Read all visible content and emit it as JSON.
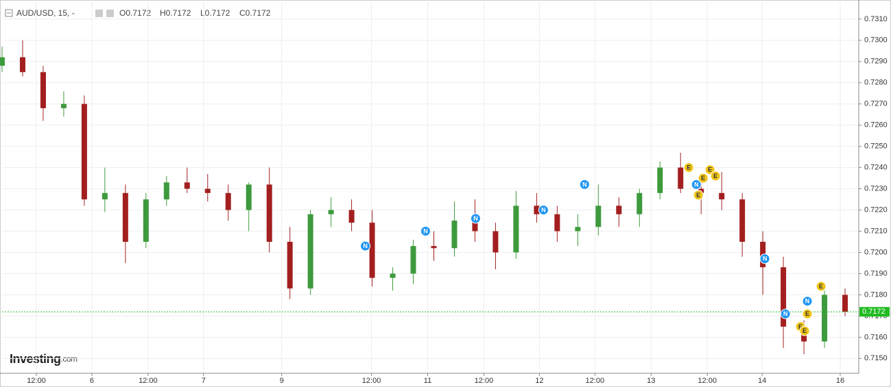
{
  "header": {
    "symbol": "AUD/USD, 15, -",
    "open": "O0.7172",
    "high": "H0.7172",
    "low": "L0.7172",
    "close": "C0.7172"
  },
  "logo": {
    "main": "Investing",
    "suffix": ".com"
  },
  "chart_data": {
    "type": "candlestick",
    "x": [
      0,
      3,
      6,
      9,
      12,
      15,
      18,
      21,
      24,
      27,
      30,
      33,
      36,
      39,
      42,
      45,
      48,
      51,
      54,
      57,
      60,
      63,
      66,
      69,
      72,
      75,
      78,
      81,
      84,
      87,
      90,
      93,
      96,
      99,
      102,
      105,
      108,
      111,
      114,
      117,
      120,
      123
    ],
    "open": [
      0.7288,
      0.7292,
      0.7285,
      0.7268,
      0.727,
      0.7225,
      0.7228,
      0.7205,
      0.7225,
      0.7233,
      0.723,
      0.7228,
      0.722,
      0.7232,
      0.7205,
      0.7183,
      0.7218,
      0.722,
      0.7214,
      0.7188,
      0.719,
      0.7203,
      0.7202,
      0.7215,
      0.721,
      0.72,
      0.7222,
      0.7218,
      0.721,
      0.7212,
      0.7222,
      0.7218,
      0.7228,
      0.724,
      0.723,
      0.7228,
      0.7225,
      0.7205,
      0.7193,
      0.7165,
      0.7158,
      0.718
    ],
    "high": [
      0.7297,
      0.73,
      0.7288,
      0.7276,
      0.7274,
      0.724,
      0.7232,
      0.7228,
      0.7236,
      0.724,
      0.7237,
      0.7232,
      0.7233,
      0.724,
      0.7212,
      0.722,
      0.7226,
      0.7225,
      0.722,
      0.7193,
      0.7206,
      0.721,
      0.7224,
      0.7225,
      0.7214,
      0.7229,
      0.7228,
      0.7222,
      0.7218,
      0.7232,
      0.7226,
      0.723,
      0.7243,
      0.7247,
      0.7235,
      0.7238,
      0.7228,
      0.721,
      0.7198,
      0.7168,
      0.7182,
      0.7183
    ],
    "low": [
      0.7285,
      0.7283,
      0.7262,
      0.7264,
      0.7222,
      0.7219,
      0.7195,
      0.7202,
      0.7222,
      0.7228,
      0.7224,
      0.7215,
      0.721,
      0.72,
      0.7178,
      0.718,
      0.7212,
      0.721,
      0.7184,
      0.7182,
      0.7185,
      0.7196,
      0.7198,
      0.7205,
      0.7192,
      0.7197,
      0.7214,
      0.7205,
      0.7203,
      0.7208,
      0.7212,
      0.7212,
      0.7225,
      0.7228,
      0.7218,
      0.722,
      0.7198,
      0.718,
      0.7155,
      0.7152,
      0.7155,
      0.717
    ],
    "close": [
      0.7292,
      0.7285,
      0.7268,
      0.727,
      0.7225,
      0.7228,
      0.7205,
      0.7225,
      0.7233,
      0.723,
      0.7228,
      0.722,
      0.7232,
      0.7205,
      0.7183,
      0.7218,
      0.722,
      0.7214,
      0.7188,
      0.719,
      0.7203,
      0.7202,
      0.7215,
      0.721,
      0.72,
      0.7222,
      0.7218,
      0.721,
      0.7212,
      0.7222,
      0.7218,
      0.7228,
      0.724,
      0.723,
      0.7228,
      0.7225,
      0.7205,
      0.7193,
      0.7165,
      0.7158,
      0.718,
      0.7172
    ],
    "up_color": "#3d9a3d",
    "down_color": "#a31f1f",
    "xlim": [
      0,
      125
    ],
    "xticks": [
      {
        "value": 5.0,
        "label": "12:00"
      },
      {
        "value": 13.1,
        "label": "6"
      },
      {
        "value": 21.3,
        "label": "12:00"
      },
      {
        "value": 29.4,
        "label": "7"
      },
      {
        "value": 40.8,
        "label": "9"
      },
      {
        "value": 53.9,
        "label": "12:00"
      },
      {
        "value": 62.1,
        "label": "11"
      },
      {
        "value": 70.3,
        "label": "12:00"
      },
      {
        "value": 78.4,
        "label": "12"
      },
      {
        "value": 86.5,
        "label": "12:00"
      },
      {
        "value": 94.7,
        "label": "13"
      },
      {
        "value": 102.9,
        "label": "12:00"
      },
      {
        "value": 110.9,
        "label": "14"
      },
      {
        "value": 122.3,
        "label": "16"
      }
    ],
    "ylim": [
      0.7143,
      0.7319
    ],
    "yticks": [
      {
        "value": 0.715,
        "label": "0.7150"
      },
      {
        "value": 0.716,
        "label": "0.7160"
      },
      {
        "value": 0.717,
        "label": "0.7170"
      },
      {
        "value": 0.718,
        "label": "0.7180"
      },
      {
        "value": 0.719,
        "label": "0.7190"
      },
      {
        "value": 0.72,
        "label": "0.7200"
      },
      {
        "value": 0.721,
        "label": "0.7210"
      },
      {
        "value": 0.722,
        "label": "0.7220"
      },
      {
        "value": 0.723,
        "label": "0.7230"
      },
      {
        "value": 0.724,
        "label": "0.7240"
      },
      {
        "value": 0.725,
        "label": "0.7250"
      },
      {
        "value": 0.726,
        "label": "0.7260"
      },
      {
        "value": 0.727,
        "label": "0.7270"
      },
      {
        "value": 0.728,
        "label": "0.7280"
      },
      {
        "value": 0.729,
        "label": "0.7290"
      },
      {
        "value": 0.73,
        "label": "0.7300"
      },
      {
        "value": 0.731,
        "label": "0.7310"
      }
    ],
    "grid": true,
    "last_price": 0.7172,
    "last_price_color": "#22bb22",
    "event_colors": {
      "N": "#2196f3",
      "E": "#f0c419"
    },
    "events": [
      {
        "label": "N",
        "x": 53.0,
        "y": 0.7203
      },
      {
        "label": "N",
        "x": 61.8,
        "y": 0.721
      },
      {
        "label": "N",
        "x": 69.1,
        "y": 0.7216
      },
      {
        "label": "N",
        "x": 79.0,
        "y": 0.722
      },
      {
        "label": "N",
        "x": 85.0,
        "y": 0.7232
      },
      {
        "label": "E",
        "x": 100.2,
        "y": 0.724
      },
      {
        "label": "N",
        "x": 101.3,
        "y": 0.7232
      },
      {
        "label": "E",
        "x": 102.3,
        "y": 0.7235
      },
      {
        "label": "E",
        "x": 103.3,
        "y": 0.7239
      },
      {
        "label": "E",
        "x": 104.1,
        "y": 0.7236
      },
      {
        "label": "E",
        "x": 101.6,
        "y": 0.7227
      },
      {
        "label": "N",
        "x": 111.3,
        "y": 0.7197
      },
      {
        "label": "N",
        "x": 114.3,
        "y": 0.7171
      },
      {
        "label": "N",
        "x": 117.5,
        "y": 0.7177
      },
      {
        "label": "E",
        "x": 117.5,
        "y": 0.7171
      },
      {
        "label": "E",
        "x": 116.5,
        "y": 0.7165
      },
      {
        "label": "E",
        "x": 117.1,
        "y": 0.7163
      },
      {
        "label": "E",
        "x": 119.5,
        "y": 0.7184
      }
    ]
  }
}
